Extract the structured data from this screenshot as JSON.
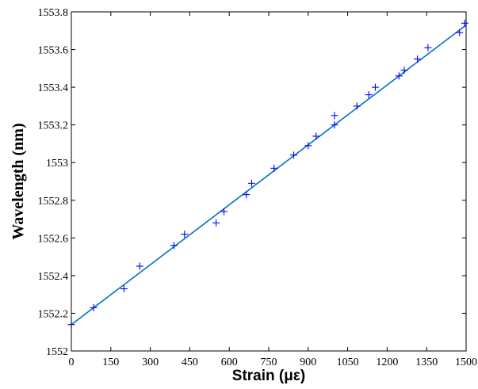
{
  "chart_data": {
    "type": "scatter",
    "title": "",
    "xlabel": "Strain (με)",
    "ylabel": "Wavelength (nm)",
    "xlim": [
      0,
      1500
    ],
    "ylim": [
      1552,
      1553.8
    ],
    "x_ticks": [
      0,
      150,
      300,
      450,
      600,
      750,
      900,
      1050,
      1200,
      1350,
      1500
    ],
    "x_tick_labels": [
      "0",
      "150",
      "300",
      "450",
      "600",
      "750",
      "900",
      "1050",
      "1200",
      "1350",
      "1500"
    ],
    "y_ticks": [
      1552,
      1552.2,
      1552.4,
      1552.6,
      1552.8,
      1553,
      1553.2,
      1553.4,
      1553.6,
      1553.8
    ],
    "y_tick_labels": [
      "1552",
      "1552.2",
      "1552.4",
      "1552.6",
      "1552.8",
      "1553",
      "1553.2",
      "1553.4",
      "1553.6",
      "1553.8"
    ],
    "grid": false,
    "series": [
      {
        "marker": "+",
        "color": "#0000ff",
        "x": [
          0,
          85,
          200,
          260,
          390,
          430,
          550,
          580,
          665,
          685,
          770,
          845,
          900,
          930,
          1000,
          1000,
          1085,
          1130,
          1155,
          1245,
          1265,
          1315,
          1355,
          1475,
          1495
        ],
        "y": [
          1552.14,
          1552.23,
          1552.33,
          1552.45,
          1552.56,
          1552.62,
          1552.68,
          1552.74,
          1552.83,
          1552.89,
          1552.97,
          1553.04,
          1553.09,
          1553.14,
          1553.2,
          1553.25,
          1553.3,
          1553.36,
          1553.4,
          1553.46,
          1553.49,
          1553.55,
          1553.61,
          1553.69,
          1553.74
        ]
      },
      {
        "type": "line",
        "color": "#0072bd",
        "x": [
          0,
          1500
        ],
        "y": [
          1552.14,
          1553.73
        ]
      }
    ]
  }
}
